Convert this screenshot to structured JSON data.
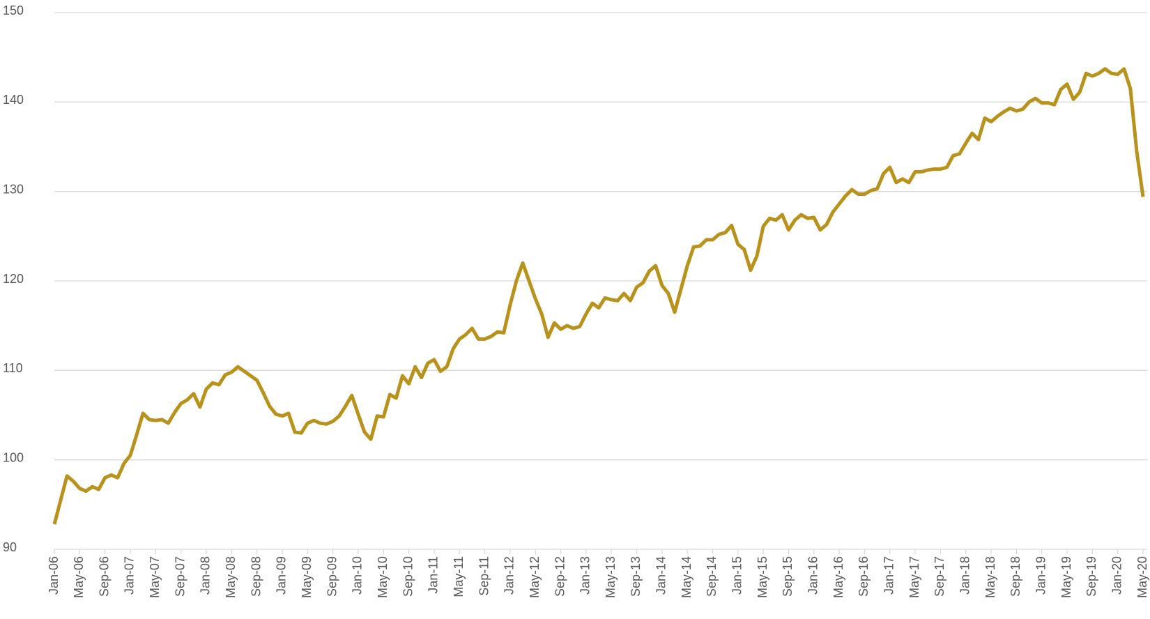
{
  "chart_data": {
    "type": "line",
    "categories": [
      "Jan-06",
      null,
      null,
      null,
      "May-06",
      null,
      null,
      null,
      "Sep-06",
      null,
      null,
      null,
      "Jan-07",
      null,
      null,
      null,
      "May-07",
      null,
      null,
      null,
      "Sep-07",
      null,
      null,
      null,
      "Jan-08",
      null,
      null,
      null,
      "May-08",
      null,
      null,
      null,
      "Sep-08",
      null,
      null,
      null,
      "Jan-09",
      null,
      null,
      null,
      "May-09",
      null,
      null,
      null,
      "Sep-09",
      null,
      null,
      null,
      "Jan-10",
      null,
      null,
      null,
      "May-10",
      null,
      null,
      null,
      "Sep-10",
      null,
      null,
      null,
      "Jan-11",
      null,
      null,
      null,
      "May-11",
      null,
      null,
      null,
      "Sep-11",
      null,
      null,
      null,
      "Jan-12",
      null,
      null,
      null,
      "May-12",
      null,
      null,
      null,
      "Sep-12",
      null,
      null,
      null,
      "Jan-13",
      null,
      null,
      null,
      "May-13",
      null,
      null,
      null,
      "Sep-13",
      null,
      null,
      null,
      "Jan-14",
      null,
      null,
      null,
      "May-14",
      null,
      null,
      null,
      "Sep-14",
      null,
      null,
      null,
      "Jan-15",
      null,
      null,
      null,
      "May-15",
      null,
      null,
      null,
      "Sep-15",
      null,
      null,
      null,
      "Jan-16",
      null,
      null,
      null,
      "May-16",
      null,
      null,
      null,
      "Sep-16",
      null,
      null,
      null,
      "Jan-17",
      null,
      null,
      null,
      "May-17",
      null,
      null,
      null,
      "Sep-17",
      null,
      null,
      null,
      "Jan-18",
      null,
      null,
      null,
      "May-18",
      null,
      null,
      null,
      "Sep-18",
      null,
      null,
      null,
      "Jan-19",
      null,
      null,
      null,
      "May-19",
      null,
      null,
      null,
      "Sep-19",
      null,
      null,
      null,
      "Jan-20",
      null,
      null,
      null,
      "May-20"
    ],
    "series": [
      {
        "color": "#b8921a",
        "values": [
          92.8,
          95.5,
          98.2,
          97.6,
          96.8,
          96.5,
          97.0,
          96.7,
          98.0,
          98.3,
          98.0,
          99.6,
          100.5,
          102.8,
          105.2,
          104.5,
          104.4,
          104.5,
          104.1,
          105.3,
          106.3,
          106.7,
          107.4,
          105.9,
          107.9,
          108.6,
          108.4,
          109.5,
          109.8,
          110.4,
          109.9,
          109.4,
          108.9,
          107.5,
          106.0,
          105.1,
          104.9,
          105.2,
          103.1,
          103.0,
          104.1,
          104.4,
          104.1,
          104.0,
          104.3,
          104.9,
          106.0,
          107.2,
          105.1,
          103.1,
          102.3,
          104.9,
          104.8,
          107.3,
          106.9,
          109.4,
          108.5,
          110.4,
          109.2,
          110.8,
          111.2,
          109.9,
          110.4,
          112.4,
          113.5,
          114.0,
          114.7,
          113.5,
          113.5,
          113.8,
          114.3,
          114.2,
          117.3,
          120.0,
          122.0,
          120.0,
          118.0,
          116.3,
          113.7,
          115.3,
          114.6,
          115.0,
          114.7,
          114.9,
          116.3,
          117.5,
          117.0,
          118.1,
          117.9,
          117.8,
          118.6,
          117.8,
          119.3,
          119.8,
          121.1,
          121.7,
          119.5,
          118.6,
          116.5,
          119.1,
          121.7,
          123.8,
          123.9,
          124.6,
          124.6,
          125.2,
          125.4,
          126.2,
          124.1,
          123.5,
          121.2,
          122.8,
          126.1,
          127.0,
          126.8,
          127.4,
          125.7,
          126.8,
          127.4,
          127.0,
          127.1,
          125.7,
          126.3,
          127.7,
          128.6,
          129.5,
          130.2,
          129.7,
          129.7,
          130.1,
          130.3,
          132.0,
          132.7,
          131.0,
          131.4,
          131.0,
          132.2,
          132.2,
          132.4,
          132.5,
          132.5,
          132.7,
          134.0,
          134.2,
          135.4,
          136.5,
          135.8,
          138.2,
          137.8,
          138.4,
          138.9,
          139.3,
          139.0,
          139.2,
          140.0,
          140.4,
          139.9,
          139.9,
          139.7,
          141.4,
          142.0,
          140.3,
          141.1,
          143.2,
          142.9,
          143.2,
          143.7,
          143.2,
          143.1,
          143.7,
          141.5,
          134.5,
          129.4
        ]
      }
    ],
    "ylim": [
      90,
      150
    ],
    "yticks": [
      90,
      100,
      110,
      120,
      130,
      140,
      150
    ],
    "grid": true
  }
}
